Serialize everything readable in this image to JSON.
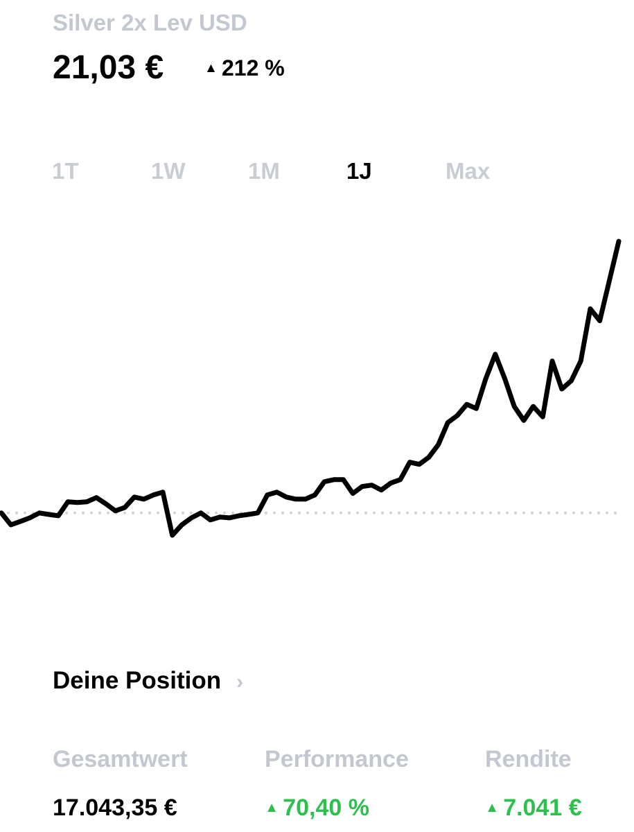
{
  "header": {
    "title": "Silver 2x Lev USD",
    "price": "21,03 €",
    "change": "212 %"
  },
  "tabs": [
    "1T",
    "1W",
    "1M",
    "1J",
    "Max"
  ],
  "chart_data": {
    "type": "line",
    "color": "#000000",
    "values": [
      6.67,
      6.04,
      6.22,
      6.41,
      6.67,
      6.59,
      6.52,
      7.26,
      7.22,
      7.26,
      7.48,
      7.15,
      6.78,
      6.96,
      7.51,
      7.4,
      7.62,
      7.77,
      5.49,
      6.04,
      6.41,
      6.67,
      6.3,
      6.45,
      6.41,
      6.52,
      6.59,
      6.67,
      7.62,
      7.77,
      7.51,
      7.4,
      7.4,
      7.62,
      8.32,
      8.43,
      8.43,
      7.7,
      8.07,
      8.14,
      7.88,
      8.25,
      8.43,
      9.35,
      9.24,
      9.61,
      10.28,
      11.45,
      11.82,
      12.41,
      12.19,
      13.77,
      15.06,
      13.77,
      12.3,
      11.56,
      12.3,
      11.75,
      14.7,
      13.22,
      13.66,
      14.7,
      17.46,
      16.83,
      18.93,
      21.03
    ]
  },
  "position": {
    "title": "Deine Position",
    "stats": [
      {
        "label": "Gesamtwert",
        "value": "17.043,35 €"
      },
      {
        "label": "Performance",
        "value": "70,40 %"
      },
      {
        "label": "Rendite",
        "value": "7.041 €"
      }
    ]
  }
}
